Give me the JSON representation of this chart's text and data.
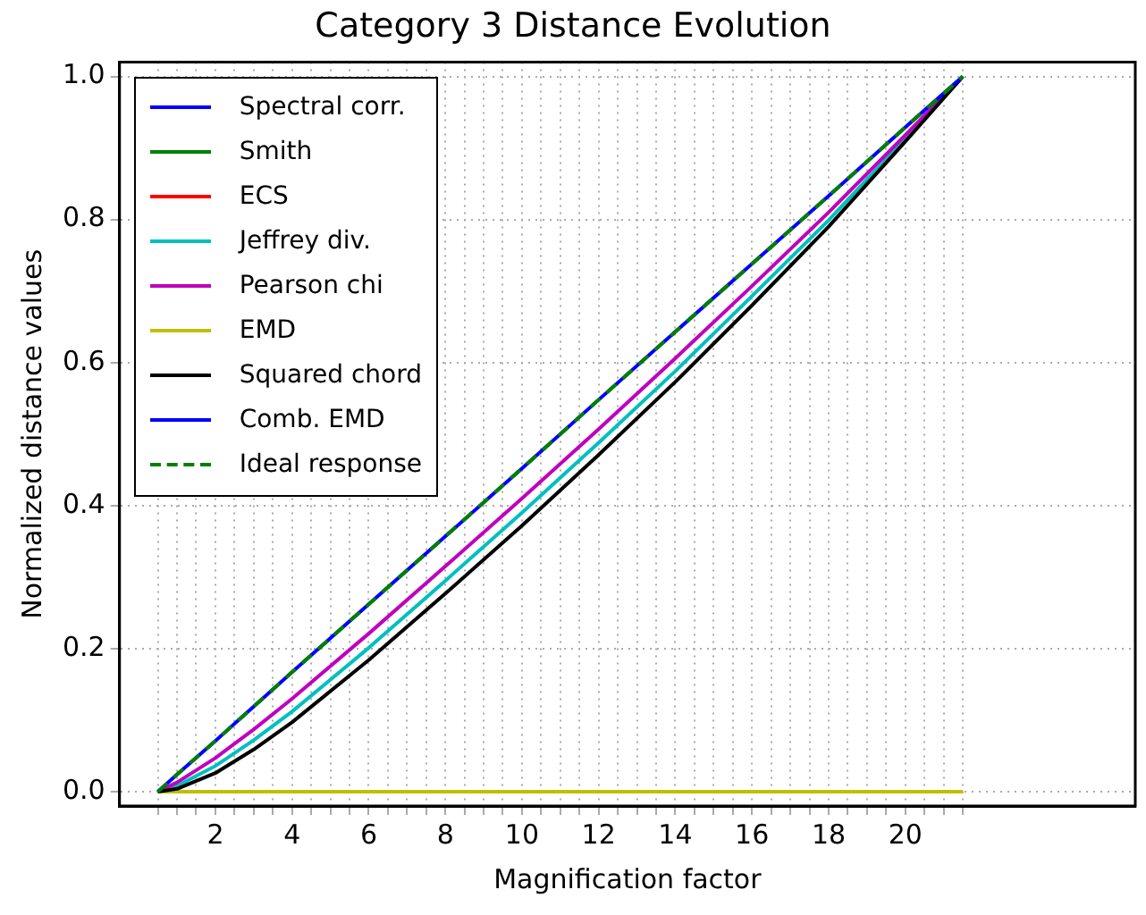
{
  "chart_data": {
    "type": "line",
    "title": "Category 3 Distance Evolution",
    "xlabel": "Magnification factor",
    "ylabel": "Normalized distance values",
    "x": [
      0.5,
      1,
      2,
      3,
      4,
      6,
      8,
      10,
      12,
      14,
      16,
      18,
      20,
      21.5
    ],
    "series": [
      {
        "name": "Spectral corr.",
        "color": "#0000ff",
        "values": [
          null,
          null,
          null,
          null,
          null,
          null,
          null,
          null,
          null,
          null,
          null,
          null,
          null,
          null
        ]
      },
      {
        "name": "Smith",
        "color": "#008000",
        "values": [
          null,
          null,
          null,
          null,
          null,
          null,
          null,
          null,
          null,
          null,
          null,
          null,
          null,
          null
        ]
      },
      {
        "name": "ECS",
        "color": "#ff0000",
        "values": [
          null,
          null,
          null,
          null,
          null,
          null,
          null,
          null,
          null,
          null,
          null,
          null,
          null,
          null
        ]
      },
      {
        "name": "Jeffrey div.",
        "color": "#00bfbf",
        "values": [
          0,
          0.008,
          0.036,
          0.072,
          0.112,
          0.201,
          0.295,
          0.39,
          0.488,
          0.588,
          0.693,
          0.799,
          0.913,
          1
        ]
      },
      {
        "name": "Pearson chi",
        "color": "#bf00bf",
        "values": [
          0,
          0.013,
          0.047,
          0.087,
          0.13,
          0.221,
          0.315,
          0.41,
          0.507,
          0.606,
          0.707,
          0.81,
          0.918,
          1
        ]
      },
      {
        "name": "EMD",
        "color": "#bfbf00",
        "values": [
          0,
          0,
          0,
          0,
          0,
          0,
          0,
          0,
          0,
          0,
          0,
          0,
          0,
          0
        ]
      },
      {
        "name": "Squared chord",
        "color": "#000000",
        "values": [
          0,
          0.004,
          0.026,
          0.059,
          0.097,
          0.184,
          0.277,
          0.372,
          0.471,
          0.573,
          0.68,
          0.79,
          0.909,
          1
        ]
      },
      {
        "name": "Comb. EMD",
        "color": "#0000ff",
        "values": [
          0,
          0.024,
          0.071,
          0.119,
          0.167,
          0.262,
          0.357,
          0.452,
          0.548,
          0.643,
          0.738,
          0.833,
          0.929,
          1
        ]
      },
      {
        "name": "Ideal response",
        "color": "#008000",
        "line_style": "dashed",
        "values": [
          0,
          0.024,
          0.071,
          0.119,
          0.167,
          0.262,
          0.357,
          0.452,
          0.548,
          0.643,
          0.738,
          0.833,
          0.929,
          1
        ]
      }
    ],
    "xlim": [
      -0.5,
      26
    ],
    "xticks": [
      {
        "value": 0.5,
        "label": null
      },
      {
        "value": 1,
        "label": null
      },
      {
        "value": 1.5,
        "label": null
      },
      2,
      {
        "value": 2.5,
        "label": null
      },
      {
        "value": 3,
        "label": null
      },
      {
        "value": 3.5,
        "label": null
      },
      4,
      {
        "value": 4.5,
        "label": null
      },
      {
        "value": 5,
        "label": null
      },
      {
        "value": 5.5,
        "label": null
      },
      6,
      {
        "value": 6.5,
        "label": null
      },
      {
        "value": 7,
        "label": null
      },
      {
        "value": 7.5,
        "label": null
      },
      8,
      {
        "value": 8.5,
        "label": null
      },
      {
        "value": 9,
        "label": null
      },
      {
        "value": 9.5,
        "label": null
      },
      10,
      {
        "value": 10.5,
        "label": null
      },
      {
        "value": 11,
        "label": null
      },
      {
        "value": 11.5,
        "label": null
      },
      12,
      {
        "value": 12.5,
        "label": null
      },
      {
        "value": 13,
        "label": null
      },
      {
        "value": 13.5,
        "label": null
      },
      14,
      {
        "value": 14.5,
        "label": null
      },
      {
        "value": 15,
        "label": null
      },
      {
        "value": 15.5,
        "label": null
      },
      16,
      {
        "value": 16.5,
        "label": null
      },
      {
        "value": 17,
        "label": null
      },
      {
        "value": 17.5,
        "label": null
      },
      18,
      {
        "value": 18.5,
        "label": null
      },
      {
        "value": 19,
        "label": null
      },
      {
        "value": 19.5,
        "label": null
      },
      20,
      {
        "value": 20.5,
        "label": null
      },
      {
        "value": 21,
        "label": null
      },
      {
        "value": 21.5,
        "label": null
      }
    ],
    "ylim": [
      -0.02,
      1.02
    ],
    "yticks": [
      {
        "value": 0,
        "label": "0.0"
      },
      {
        "value": 0.2,
        "label": "0.2"
      },
      {
        "value": 0.4,
        "label": "0.4"
      },
      {
        "value": 0.6,
        "label": "0.6"
      },
      {
        "value": 0.8,
        "label": "0.8"
      },
      {
        "value": 1,
        "label": "1.0"
      }
    ],
    "grid": true,
    "legend": "top left",
    "marker": "none",
    "line_style": "solid"
  }
}
